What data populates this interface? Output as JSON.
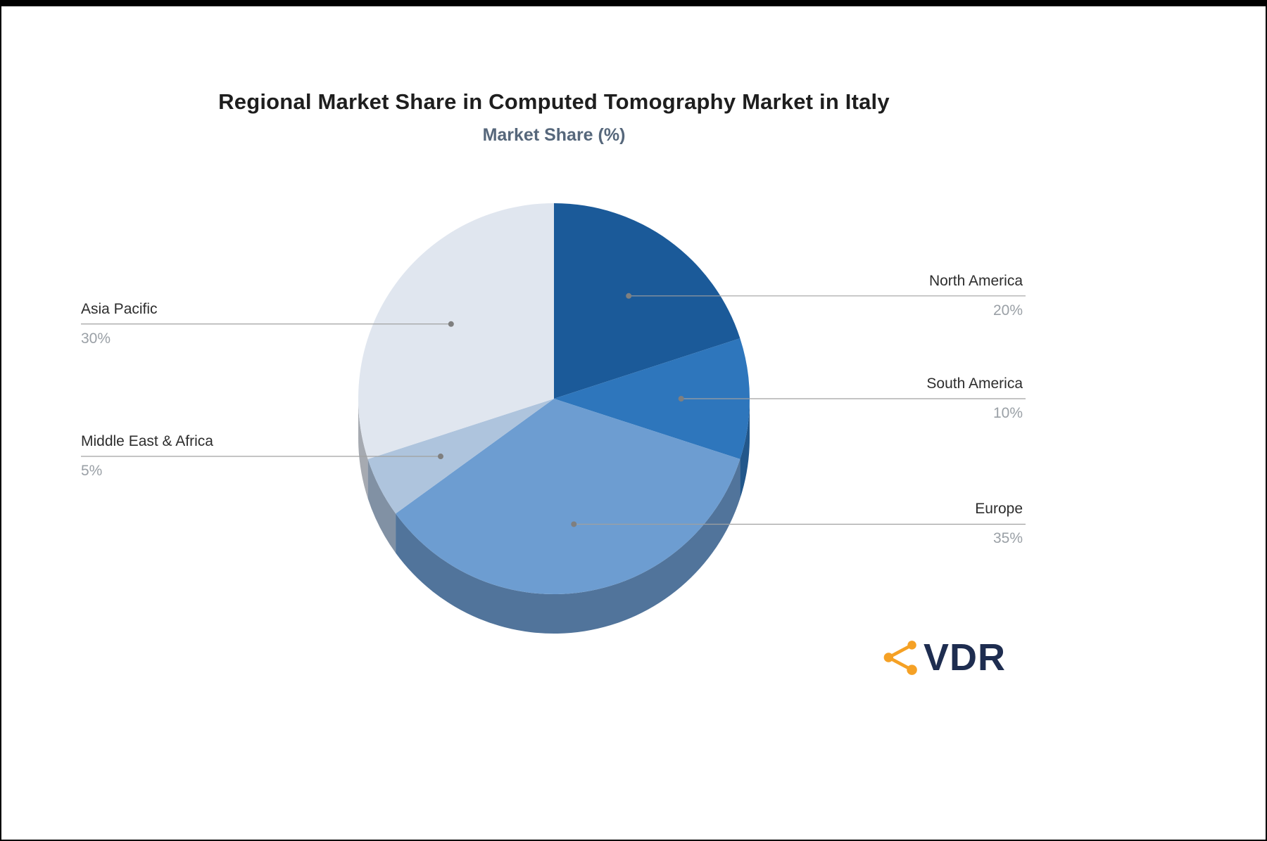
{
  "header": {
    "title": "Regional Market Share in Computed Tomography Market in Italy",
    "subtitle": "Market Share (%)"
  },
  "chart_data": {
    "type": "pie",
    "title": "Regional Market Share in Computed Tomography Market in Italy",
    "subtitle": "Market Share (%)",
    "unit": "%",
    "start_angle_deg": 0,
    "direction": "clockwise",
    "style": "3d-pie",
    "slices": [
      {
        "label": "North America",
        "value": 20,
        "display": "20%",
        "color": "#1b5a99",
        "side": "right"
      },
      {
        "label": "South America",
        "value": 10,
        "display": "10%",
        "color": "#2e76bc",
        "side": "right"
      },
      {
        "label": "Europe",
        "value": 35,
        "display": "35%",
        "color": "#6d9dd1",
        "side": "right"
      },
      {
        "label": "Middle East & Africa",
        "value": 5,
        "display": "5%",
        "color": "#aec4dd",
        "side": "left"
      },
      {
        "label": "Asia Pacific",
        "value": 30,
        "display": "30%",
        "color": "#e0e6ef",
        "side": "left"
      }
    ],
    "leader_line_color": "#a0a0a0",
    "leader_dot_color": "#7f7f7f",
    "label_color": "#2d2d2d",
    "value_color": "#9aa0a6",
    "legend_position": "callout-labels",
    "grid": false
  },
  "logo": {
    "text": "VDR",
    "text_color": "#1e2d50",
    "icon_color": "#f5a125",
    "icon_name": "share-network-icon"
  }
}
